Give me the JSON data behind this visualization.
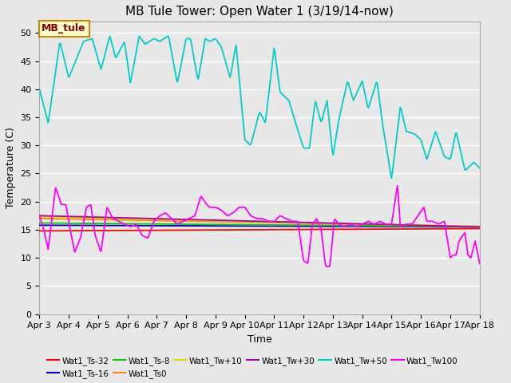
{
  "title": "MB Tule Tower: Open Water 1 (3/19/14-now)",
  "xlabel": "Time",
  "ylabel": "Temperature (C)",
  "xlim": [
    0,
    15
  ],
  "ylim": [
    0,
    52
  ],
  "yticks": [
    0,
    5,
    10,
    15,
    20,
    25,
    30,
    35,
    40,
    45,
    50
  ],
  "xtick_labels": [
    "Apr 3",
    "Apr 4",
    "Apr 5",
    "Apr 6",
    "Apr 7",
    "Apr 8",
    "Apr 9",
    "Apr 10",
    "Apr 11",
    "Apr 12",
    "Apr 13",
    "Apr 14",
    "Apr 15",
    "Apr 16",
    "Apr 17",
    "Apr 18"
  ],
  "bg_color": "#e8e8e8",
  "title_fontsize": 11,
  "axis_fontsize": 9,
  "tick_fontsize": 8,
  "legend_entries": [
    {
      "label": "Wat1_Ts-32",
      "color": "#ff0000"
    },
    {
      "label": "Wat1_Ts-16",
      "color": "#0000cc"
    },
    {
      "label": "Wat1_Ts-8",
      "color": "#00cc00"
    },
    {
      "label": "Wat1_Ts0",
      "color": "#ff8800"
    },
    {
      "label": "Wat1_Tw+10",
      "color": "#dddd00"
    },
    {
      "label": "Wat1_Tw+30",
      "color": "#aa00aa"
    },
    {
      "label": "Wat1_Tw+50",
      "color": "#00cccc"
    },
    {
      "label": "Wat1_Tw100",
      "color": "#ff00ff"
    }
  ],
  "flat_series": [
    {
      "name": "Wat1_Ts-32",
      "color": "#ff0000",
      "y0": 14.8,
      "y1": 15.2,
      "slope": 0.027
    },
    {
      "name": "Wat1_Ts-16",
      "color": "#0000cc",
      "y0": 15.8,
      "y1": 15.5,
      "slope": -0.02
    },
    {
      "name": "Wat1_Ts-8",
      "color": "#00cc00",
      "y0": 16.2,
      "y1": 15.55,
      "slope": -0.043
    },
    {
      "name": "Wat1_Ts0",
      "color": "#ff8800",
      "y0": 17.0,
      "y1": 15.6,
      "slope": -0.093
    },
    {
      "name": "Wat1_Tw+10",
      "color": "#dddd00",
      "y0": 17.3,
      "y1": 15.55,
      "slope": -0.117
    },
    {
      "name": "Wat1_Tw+30",
      "color": "#aa00aa",
      "y0": 17.5,
      "y1": 15.5,
      "slope": -0.133
    }
  ],
  "cyan_keypoints": [
    [
      0.0,
      40.0
    ],
    [
      0.3,
      34.0
    ],
    [
      0.7,
      48.5
    ],
    [
      1.0,
      42.0
    ],
    [
      1.5,
      48.5
    ],
    [
      1.8,
      49.0
    ],
    [
      2.1,
      43.5
    ],
    [
      2.4,
      49.5
    ],
    [
      2.6,
      45.5
    ],
    [
      2.9,
      48.5
    ],
    [
      3.1,
      41.0
    ],
    [
      3.4,
      49.5
    ],
    [
      3.6,
      48.0
    ],
    [
      3.9,
      49.0
    ],
    [
      4.1,
      48.5
    ],
    [
      4.4,
      49.5
    ],
    [
      4.7,
      41.0
    ],
    [
      5.0,
      49.0
    ],
    [
      5.15,
      49.0
    ],
    [
      5.4,
      41.5
    ],
    [
      5.65,
      49.0
    ],
    [
      5.8,
      48.5
    ],
    [
      6.0,
      49.0
    ],
    [
      6.2,
      47.5
    ],
    [
      6.5,
      42.0
    ],
    [
      6.7,
      48.0
    ],
    [
      7.0,
      31.0
    ],
    [
      7.2,
      30.0
    ],
    [
      7.5,
      36.0
    ],
    [
      7.7,
      34.0
    ],
    [
      8.0,
      47.5
    ],
    [
      8.2,
      39.5
    ],
    [
      8.5,
      38.0
    ],
    [
      8.7,
      34.5
    ],
    [
      9.0,
      29.5
    ],
    [
      9.2,
      29.5
    ],
    [
      9.4,
      38.0
    ],
    [
      9.6,
      34.0
    ],
    [
      9.8,
      38.0
    ],
    [
      10.0,
      28.0
    ],
    [
      10.2,
      34.5
    ],
    [
      10.5,
      41.5
    ],
    [
      10.7,
      38.0
    ],
    [
      11.0,
      41.5
    ],
    [
      11.2,
      36.5
    ],
    [
      11.5,
      41.5
    ],
    [
      11.7,
      33.5
    ],
    [
      12.0,
      24.0
    ],
    [
      12.3,
      37.0
    ],
    [
      12.5,
      32.5
    ],
    [
      12.8,
      32.0
    ],
    [
      13.0,
      31.0
    ],
    [
      13.2,
      27.5
    ],
    [
      13.5,
      32.5
    ],
    [
      13.8,
      28.0
    ],
    [
      14.0,
      27.5
    ],
    [
      14.2,
      32.5
    ],
    [
      14.5,
      25.5
    ],
    [
      14.8,
      27.0
    ],
    [
      15.0,
      26.0
    ]
  ],
  "magenta_keypoints": [
    [
      0.0,
      17.5
    ],
    [
      0.15,
      15.0
    ],
    [
      0.3,
      11.5
    ],
    [
      0.55,
      22.5
    ],
    [
      0.75,
      19.5
    ],
    [
      0.9,
      19.5
    ],
    [
      1.05,
      15.0
    ],
    [
      1.2,
      11.0
    ],
    [
      1.4,
      13.5
    ],
    [
      1.6,
      19.0
    ],
    [
      1.75,
      19.5
    ],
    [
      1.9,
      14.0
    ],
    [
      2.1,
      11.0
    ],
    [
      2.3,
      19.0
    ],
    [
      2.5,
      17.0
    ],
    [
      2.7,
      16.5
    ],
    [
      2.9,
      16.0
    ],
    [
      3.1,
      15.5
    ],
    [
      3.3,
      16.0
    ],
    [
      3.5,
      14.0
    ],
    [
      3.7,
      13.5
    ],
    [
      3.9,
      16.5
    ],
    [
      4.1,
      17.5
    ],
    [
      4.3,
      18.0
    ],
    [
      4.5,
      17.0
    ],
    [
      4.7,
      16.0
    ],
    [
      4.9,
      16.5
    ],
    [
      5.1,
      17.0
    ],
    [
      5.3,
      17.5
    ],
    [
      5.5,
      21.0
    ],
    [
      5.7,
      19.5
    ],
    [
      5.8,
      19.0
    ],
    [
      6.0,
      19.0
    ],
    [
      6.2,
      18.5
    ],
    [
      6.4,
      17.5
    ],
    [
      6.6,
      18.0
    ],
    [
      6.8,
      19.0
    ],
    [
      7.0,
      19.0
    ],
    [
      7.2,
      17.5
    ],
    [
      7.4,
      17.0
    ],
    [
      7.6,
      17.0
    ],
    [
      7.8,
      16.5
    ],
    [
      8.0,
      16.5
    ],
    [
      8.2,
      17.5
    ],
    [
      8.4,
      17.0
    ],
    [
      8.6,
      16.5
    ],
    [
      8.8,
      16.5
    ],
    [
      9.0,
      9.5
    ],
    [
      9.15,
      9.0
    ],
    [
      9.3,
      16.0
    ],
    [
      9.45,
      17.0
    ],
    [
      9.6,
      15.0
    ],
    [
      9.75,
      8.5
    ],
    [
      9.9,
      8.5
    ],
    [
      10.05,
      17.0
    ],
    [
      10.2,
      16.0
    ],
    [
      10.4,
      15.5
    ],
    [
      10.6,
      16.0
    ],
    [
      10.8,
      15.5
    ],
    [
      11.0,
      16.0
    ],
    [
      11.2,
      16.5
    ],
    [
      11.4,
      16.0
    ],
    [
      11.6,
      16.5
    ],
    [
      11.8,
      16.0
    ],
    [
      12.0,
      16.0
    ],
    [
      12.2,
      23.0
    ],
    [
      12.3,
      15.5
    ],
    [
      12.5,
      16.0
    ],
    [
      12.7,
      16.0
    ],
    [
      12.9,
      17.5
    ],
    [
      13.1,
      19.0
    ],
    [
      13.2,
      16.5
    ],
    [
      13.4,
      16.5
    ],
    [
      13.6,
      16.0
    ],
    [
      13.8,
      16.5
    ],
    [
      14.0,
      10.0
    ],
    [
      14.1,
      10.5
    ],
    [
      14.2,
      10.5
    ],
    [
      14.3,
      13.0
    ],
    [
      14.5,
      14.5
    ],
    [
      14.6,
      10.5
    ],
    [
      14.7,
      10.0
    ],
    [
      14.85,
      13.0
    ],
    [
      15.0,
      9.0
    ]
  ]
}
